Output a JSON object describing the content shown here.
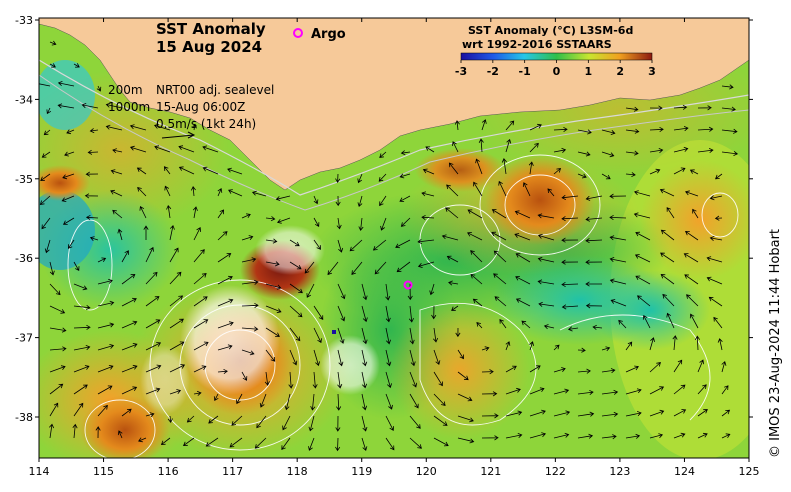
{
  "title": {
    "line1": "SST Anomaly",
    "line2": "15 Aug 2024"
  },
  "legend": {
    "argo_label": "Argo",
    "argo_color": "#ff00ff"
  },
  "annotations": {
    "depth1": "200m",
    "depth2": "1000m",
    "layer": "NRT00 adj. sealevel",
    "time": "15-Aug 06:00Z",
    "scale": "0.5m/s (1kt 24h)"
  },
  "colorbar": {
    "title1": "SST Anomaly (°C) L3SM-6d",
    "title2": "wrt 1992-2016 SSTAARS",
    "ticks": [
      "-3",
      "-2",
      "-1",
      "0",
      "1",
      "2",
      "3"
    ],
    "colors": [
      "#1a0fa0",
      "#1f5ae8",
      "#26c6e8",
      "#2fbf4a",
      "#c8e630",
      "#f0a020",
      "#8c1a10"
    ]
  },
  "axes": {
    "lon_ticks": [
      "114",
      "115",
      "116",
      "117",
      "118",
      "119",
      "120",
      "121",
      "122",
      "123",
      "124",
      "125"
    ],
    "lat_ticks": [
      "-33",
      "-34",
      "-35",
      "-36",
      "-37",
      "-38"
    ]
  },
  "colors": {
    "land": "#f6c999",
    "ocean_base": "#7ed43c"
  },
  "credit": "© IMOS 23-Aug-2024 11:44 Hobart"
}
